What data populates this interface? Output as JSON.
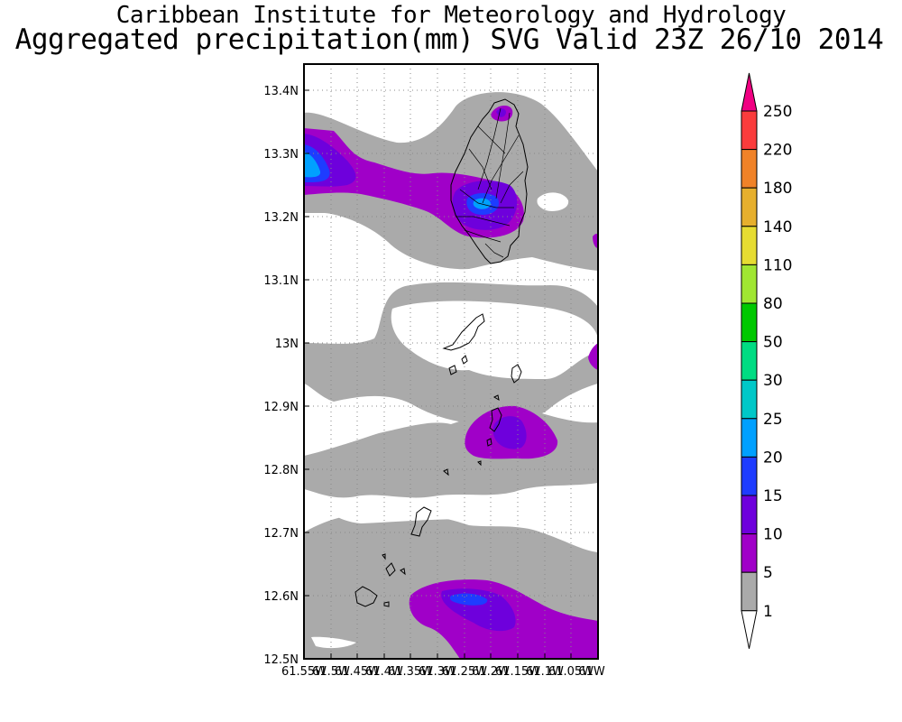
{
  "header": {
    "title": "Caribbean Institute for Meteorology and Hydrology",
    "subtitle": "Aggregated precipitation(mm) SVG Valid 23Z 26/10 2014"
  },
  "map": {
    "lat_range": [
      12.5,
      13.44
    ],
    "lon_range": [
      -61.55,
      -61.0
    ],
    "lat_ticks": [
      "13.4N",
      "13.3N",
      "13.2N",
      "13.1N",
      "13N",
      "12.9N",
      "12.8N",
      "12.7N",
      "12.6N",
      "12.5N"
    ],
    "lon_ticks": [
      "61.55W",
      "61.5W",
      "61.45W",
      "61.4W",
      "61.35W",
      "61.3W",
      "61.25W",
      "61.2W",
      "61.15W",
      "61.1W",
      "61.05W",
      "61W"
    ],
    "grid": "dotted",
    "features": [
      "Saint Vincent",
      "Grenadines islands"
    ]
  },
  "legend": {
    "thresholds": [
      "1",
      "5",
      "10",
      "15",
      "20",
      "25",
      "30",
      "50",
      "80",
      "110",
      "140",
      "180",
      "220",
      "250"
    ],
    "colors": [
      "#ffffff",
      "#aaaaaa",
      "#a000c8",
      "#6e00dc",
      "#1e3cff",
      "#00a0ff",
      "#00c8c8",
      "#00dc82",
      "#00c800",
      "#a0e632",
      "#e6dc32",
      "#e6af2d",
      "#f08228",
      "#fa3c3c",
      "#f00082"
    ]
  }
}
